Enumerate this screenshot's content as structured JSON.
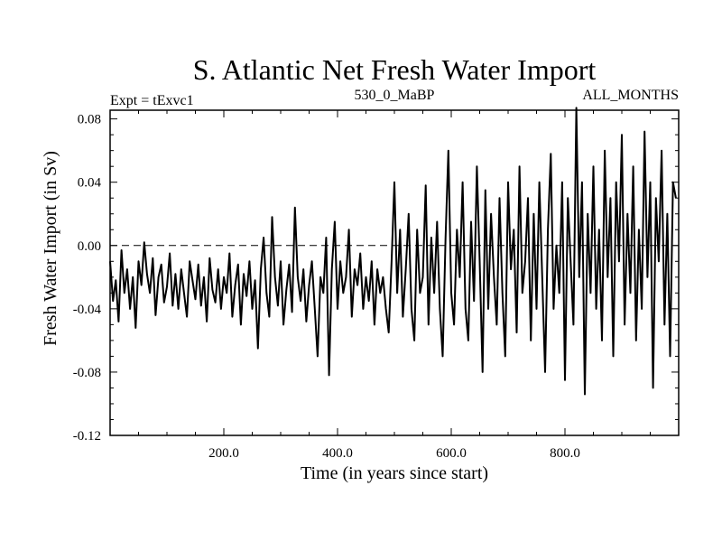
{
  "chart_data": {
    "type": "line",
    "title": "S. Atlantic Net Fresh Water Import",
    "subtitle_left": "Expt = tExvc1",
    "subtitle_center": "530_0_MaBP",
    "subtitle_right": "ALL_MONTHS",
    "xlabel": "Time (in years since start)",
    "ylabel": "Fresh Water Import (in Sv)",
    "xlim": [
      0,
      1000
    ],
    "ylim": [
      -0.12,
      0.09
    ],
    "xticks": [
      200,
      400,
      600,
      800
    ],
    "xtick_labels": [
      "200.0",
      "400.0",
      "600.0",
      "800.0"
    ],
    "yticks": [
      -0.12,
      -0.08,
      -0.04,
      0.0,
      0.04,
      0.08
    ],
    "ytick_labels": [
      "-0.12",
      "-0.08",
      "-0.04",
      "0.00",
      "0.04",
      "0.08"
    ],
    "reference_line": {
      "y": 0.0,
      "style": "dashed"
    },
    "series": [
      {
        "name": "Net fresh water import",
        "x": [
          0,
          5,
          10,
          15,
          20,
          25,
          30,
          35,
          40,
          45,
          50,
          55,
          60,
          65,
          70,
          75,
          80,
          85,
          90,
          95,
          100,
          105,
          110,
          115,
          120,
          125,
          130,
          135,
          140,
          145,
          150,
          155,
          160,
          165,
          170,
          175,
          180,
          185,
          190,
          195,
          200,
          205,
          210,
          215,
          220,
          225,
          230,
          235,
          240,
          245,
          250,
          255,
          260,
          265,
          270,
          275,
          280,
          285,
          290,
          295,
          300,
          305,
          310,
          315,
          320,
          325,
          330,
          335,
          340,
          345,
          350,
          355,
          360,
          365,
          370,
          375,
          380,
          385,
          390,
          395,
          400,
          405,
          410,
          415,
          420,
          425,
          430,
          435,
          440,
          445,
          450,
          455,
          460,
          465,
          470,
          475,
          480,
          485,
          490,
          495,
          500,
          505,
          510,
          515,
          520,
          525,
          530,
          535,
          540,
          545,
          550,
          555,
          560,
          565,
          570,
          575,
          580,
          585,
          590,
          595,
          600,
          605,
          610,
          615,
          620,
          625,
          630,
          635,
          640,
          645,
          650,
          655,
          660,
          665,
          670,
          675,
          680,
          685,
          690,
          695,
          700,
          705,
          710,
          715,
          720,
          725,
          730,
          735,
          740,
          745,
          750,
          755,
          760,
          765,
          770,
          775,
          780,
          785,
          790,
          795,
          800,
          805,
          810,
          815,
          820,
          825,
          830,
          835,
          840,
          845,
          850,
          855,
          860,
          865,
          870,
          875,
          880,
          885,
          890,
          895,
          900,
          905,
          910,
          915,
          920,
          925,
          930,
          935,
          940,
          945,
          950,
          955,
          960,
          965,
          970,
          975,
          980,
          985,
          990,
          995
        ],
        "y": [
          -0.01,
          -0.035,
          -0.022,
          -0.048,
          -0.003,
          -0.03,
          -0.015,
          -0.04,
          -0.02,
          -0.052,
          -0.01,
          -0.025,
          0.002,
          -0.018,
          -0.03,
          -0.008,
          -0.044,
          -0.02,
          -0.012,
          -0.036,
          -0.026,
          -0.005,
          -0.038,
          -0.018,
          -0.04,
          -0.015,
          -0.03,
          -0.045,
          -0.01,
          -0.022,
          -0.034,
          -0.012,
          -0.038,
          -0.02,
          -0.048,
          -0.008,
          -0.028,
          -0.036,
          -0.015,
          -0.04,
          -0.02,
          -0.03,
          -0.005,
          -0.045,
          -0.025,
          -0.012,
          -0.05,
          -0.018,
          -0.032,
          -0.01,
          -0.04,
          -0.022,
          -0.065,
          -0.015,
          0.005,
          -0.03,
          -0.045,
          0.018,
          -0.02,
          -0.038,
          -0.01,
          -0.05,
          -0.028,
          -0.012,
          -0.042,
          0.024,
          -0.02,
          -0.035,
          -0.015,
          -0.048,
          -0.025,
          -0.01,
          -0.04,
          -0.07,
          -0.02,
          -0.03,
          0.005,
          -0.082,
          -0.015,
          0.015,
          -0.04,
          -0.01,
          -0.03,
          -0.02,
          0.01,
          -0.045,
          -0.015,
          -0.025,
          -0.005,
          -0.04,
          -0.02,
          -0.035,
          -0.01,
          -0.05,
          -0.015,
          -0.03,
          -0.02,
          -0.04,
          -0.055,
          -0.01,
          0.04,
          -0.03,
          0.01,
          -0.045,
          -0.015,
          0.02,
          -0.04,
          -0.06,
          0.01,
          -0.03,
          -0.02,
          0.038,
          -0.05,
          0.005,
          -0.03,
          0.015,
          -0.04,
          -0.07,
          0.005,
          0.06,
          -0.03,
          -0.05,
          0.01,
          -0.02,
          0.04,
          -0.04,
          -0.06,
          0.015,
          -0.035,
          0.05,
          -0.01,
          -0.08,
          0.035,
          -0.04,
          0.02,
          -0.02,
          -0.05,
          0.03,
          -0.03,
          -0.07,
          0.04,
          -0.015,
          0.01,
          -0.055,
          0.05,
          -0.03,
          -0.01,
          0.03,
          -0.06,
          0.02,
          -0.04,
          0.04,
          -0.02,
          -0.08,
          0.01,
          0.058,
          -0.04,
          0.0,
          -0.03,
          0.04,
          -0.085,
          0.03,
          -0.01,
          -0.05,
          0.087,
          -0.02,
          0.04,
          -0.094,
          0.02,
          -0.03,
          0.05,
          -0.04,
          0.01,
          -0.06,
          0.06,
          -0.02,
          0.03,
          -0.07,
          0.04,
          -0.01,
          0.07,
          -0.05,
          0.02,
          -0.03,
          0.05,
          -0.06,
          0.01,
          -0.04,
          0.072,
          -0.02,
          0.04,
          -0.09,
          0.03,
          -0.01,
          0.06,
          -0.05,
          0.02,
          -0.07,
          0.04,
          0.03
        ]
      }
    ]
  }
}
